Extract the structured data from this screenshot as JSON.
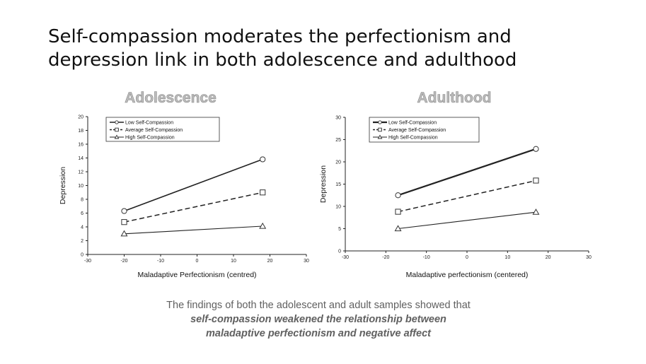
{
  "slide": {
    "title_line1": "Self-compassion moderates the perfectionism and",
    "title_line2": "depression link in both adolescence and adulthood",
    "caption_line1": "The findings of both the adolescent and adult samples showed that",
    "caption_line2": "self-compassion weakened the relationship between",
    "caption_line3": "maladaptive perfectionism and negative affect"
  },
  "chart_data": [
    {
      "type": "line",
      "title": "Adolescence",
      "xlabel": "Maladaptive Perfectionism (centred)",
      "ylabel": "Depression",
      "xlim": [
        -30,
        30
      ],
      "ylim": [
        0,
        20
      ],
      "xticks": [
        -30,
        -20,
        -10,
        0,
        10,
        20,
        30
      ],
      "yticks": [
        0,
        2,
        4,
        6,
        8,
        10,
        12,
        14,
        16,
        18,
        20
      ],
      "grid": false,
      "legend_position": "top-left",
      "series": [
        {
          "name": "Low Self-Compassion",
          "x": [
            -20,
            18
          ],
          "y": [
            6.3,
            13.8
          ],
          "marker": "circle",
          "line": "solid",
          "color": "#222222"
        },
        {
          "name": "Average Self-Compassion",
          "x": [
            -20,
            18
          ],
          "y": [
            4.7,
            9.0
          ],
          "marker": "square",
          "line": "dashed",
          "color": "#222222"
        },
        {
          "name": "High Self-Compassion",
          "x": [
            -20,
            18
          ],
          "y": [
            3.0,
            4.1
          ],
          "marker": "triangle",
          "line": "solid-thin",
          "color": "#222222"
        }
      ]
    },
    {
      "type": "line",
      "title": "Adulthood",
      "xlabel": "Maladaptive perfectionism (centered)",
      "ylabel": "Depression",
      "xlim": [
        -30,
        30
      ],
      "ylim": [
        0,
        30
      ],
      "xticks": [
        -30,
        -20,
        -10,
        0,
        10,
        20,
        30
      ],
      "yticks": [
        0,
        5,
        10,
        15,
        20,
        25,
        30
      ],
      "grid": false,
      "legend_position": "top-left",
      "series": [
        {
          "name": "Low Self-Compassion",
          "x": [
            -17,
            17
          ],
          "y": [
            12.5,
            22.9
          ],
          "marker": "circle",
          "line": "solid-thick",
          "color": "#222222"
        },
        {
          "name": "Average Self-Compassion",
          "x": [
            -17,
            17
          ],
          "y": [
            8.8,
            15.8
          ],
          "marker": "square",
          "line": "dashed",
          "color": "#222222"
        },
        {
          "name": "High Self-Compassion",
          "x": [
            -17,
            17
          ],
          "y": [
            5.0,
            8.7
          ],
          "marker": "triangle",
          "line": "solid-thin",
          "color": "#222222"
        }
      ]
    }
  ]
}
